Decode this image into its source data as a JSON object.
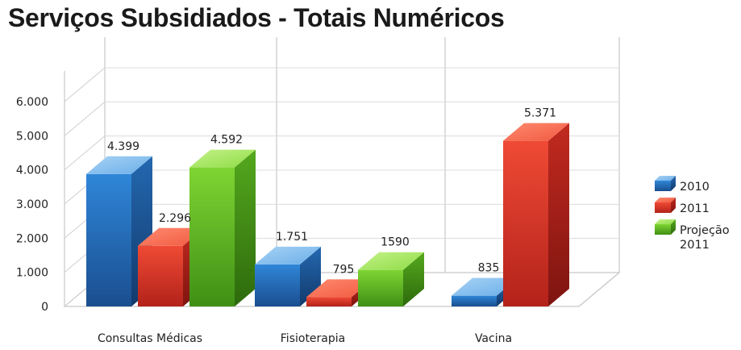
{
  "chart_data": {
    "type": "bar",
    "title": "Serviços Subsidiados - Totais Numéricos",
    "categories": [
      "Consultas Médicas",
      "Fisioterapia",
      "Vacina"
    ],
    "series": [
      {
        "name": "2010",
        "values": [
          4399,
          1751,
          835
        ],
        "labels": [
          "4.399",
          "1.751",
          "835"
        ],
        "color": "#2e7fcf"
      },
      {
        "name": "2011",
        "values": [
          2296,
          795,
          5371
        ],
        "labels": [
          "2.296",
          "795",
          "5.371"
        ],
        "color": "#e8412f"
      },
      {
        "name": "Projeção 2011",
        "legend_lines": [
          "Projeção",
          "2011"
        ],
        "values": [
          4592,
          1590,
          null
        ],
        "labels": [
          "4.592",
          "1590",
          ""
        ],
        "color": "#6cc42a"
      }
    ],
    "yticks": [
      "0",
      "1.000",
      "2.000",
      "3.000",
      "4.000",
      "5.000",
      "6.000"
    ],
    "ylim": [
      0,
      6000
    ],
    "grid": true,
    "style": "3d-bars",
    "legend": "right"
  }
}
